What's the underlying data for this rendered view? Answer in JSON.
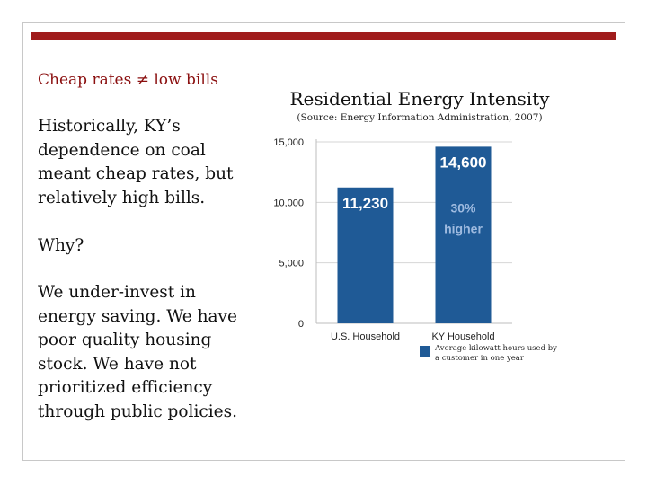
{
  "slide": {
    "heading": "Cheap rates ≠ low bills",
    "paragraph1": "Historically, KY’s dependence on coal meant cheap rates, but relatively high bills.",
    "paragraph2": "Why?",
    "paragraph3": "We under-invest in energy saving. We have poor quality housing stock. We have not prioritized efficiency through public policies."
  },
  "colors": {
    "accent": "#a01c1c",
    "heading": "#8b1010",
    "bar": "#1f5a96",
    "bar_label": "#ffffff",
    "bar_annotation": "#9fbbe0"
  },
  "chart_data": {
    "type": "bar",
    "title": "Residential Energy Intensity",
    "subtitle": "(Source: Energy Information Administration, 2007)",
    "categories": [
      "U.S. Household",
      "KY Household"
    ],
    "values": [
      11230,
      14600
    ],
    "value_labels": [
      "11,230",
      "14,600"
    ],
    "ylim": [
      0,
      15000
    ],
    "yticks": [
      0,
      5000,
      10000,
      15000
    ],
    "ytick_labels": [
      "0",
      "5,000",
      "10,000",
      "15,000"
    ],
    "grid": true,
    "annotation": {
      "category": "KY Household",
      "lines": [
        "30%",
        "higher"
      ]
    },
    "legend": {
      "label": "Average kilowatt hours used by a customer in one year",
      "position": "bottom-right"
    }
  }
}
